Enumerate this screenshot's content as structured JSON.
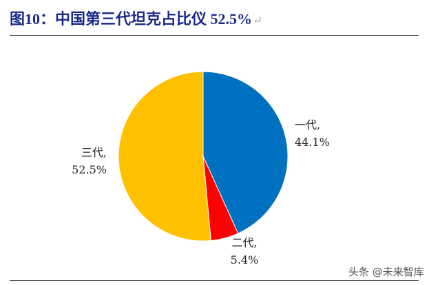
{
  "header": {
    "title": "图10：中国第三代坦克占比仪 52.5%",
    "return_mark": "↵"
  },
  "chart_data": {
    "type": "pie",
    "title": "",
    "categories": [
      "一代",
      "二代",
      "三代"
    ],
    "values": [
      44.1,
      5.4,
      52.5
    ],
    "value_labels": [
      "44.1%",
      "5.4%",
      "52.5%"
    ],
    "colors": [
      "#0070c0",
      "#ff0000",
      "#ffc000"
    ],
    "start_angle_deg": 0,
    "direction": "clockwise",
    "legend": "none"
  },
  "watermark": {
    "text": "头条 @未来智库"
  }
}
